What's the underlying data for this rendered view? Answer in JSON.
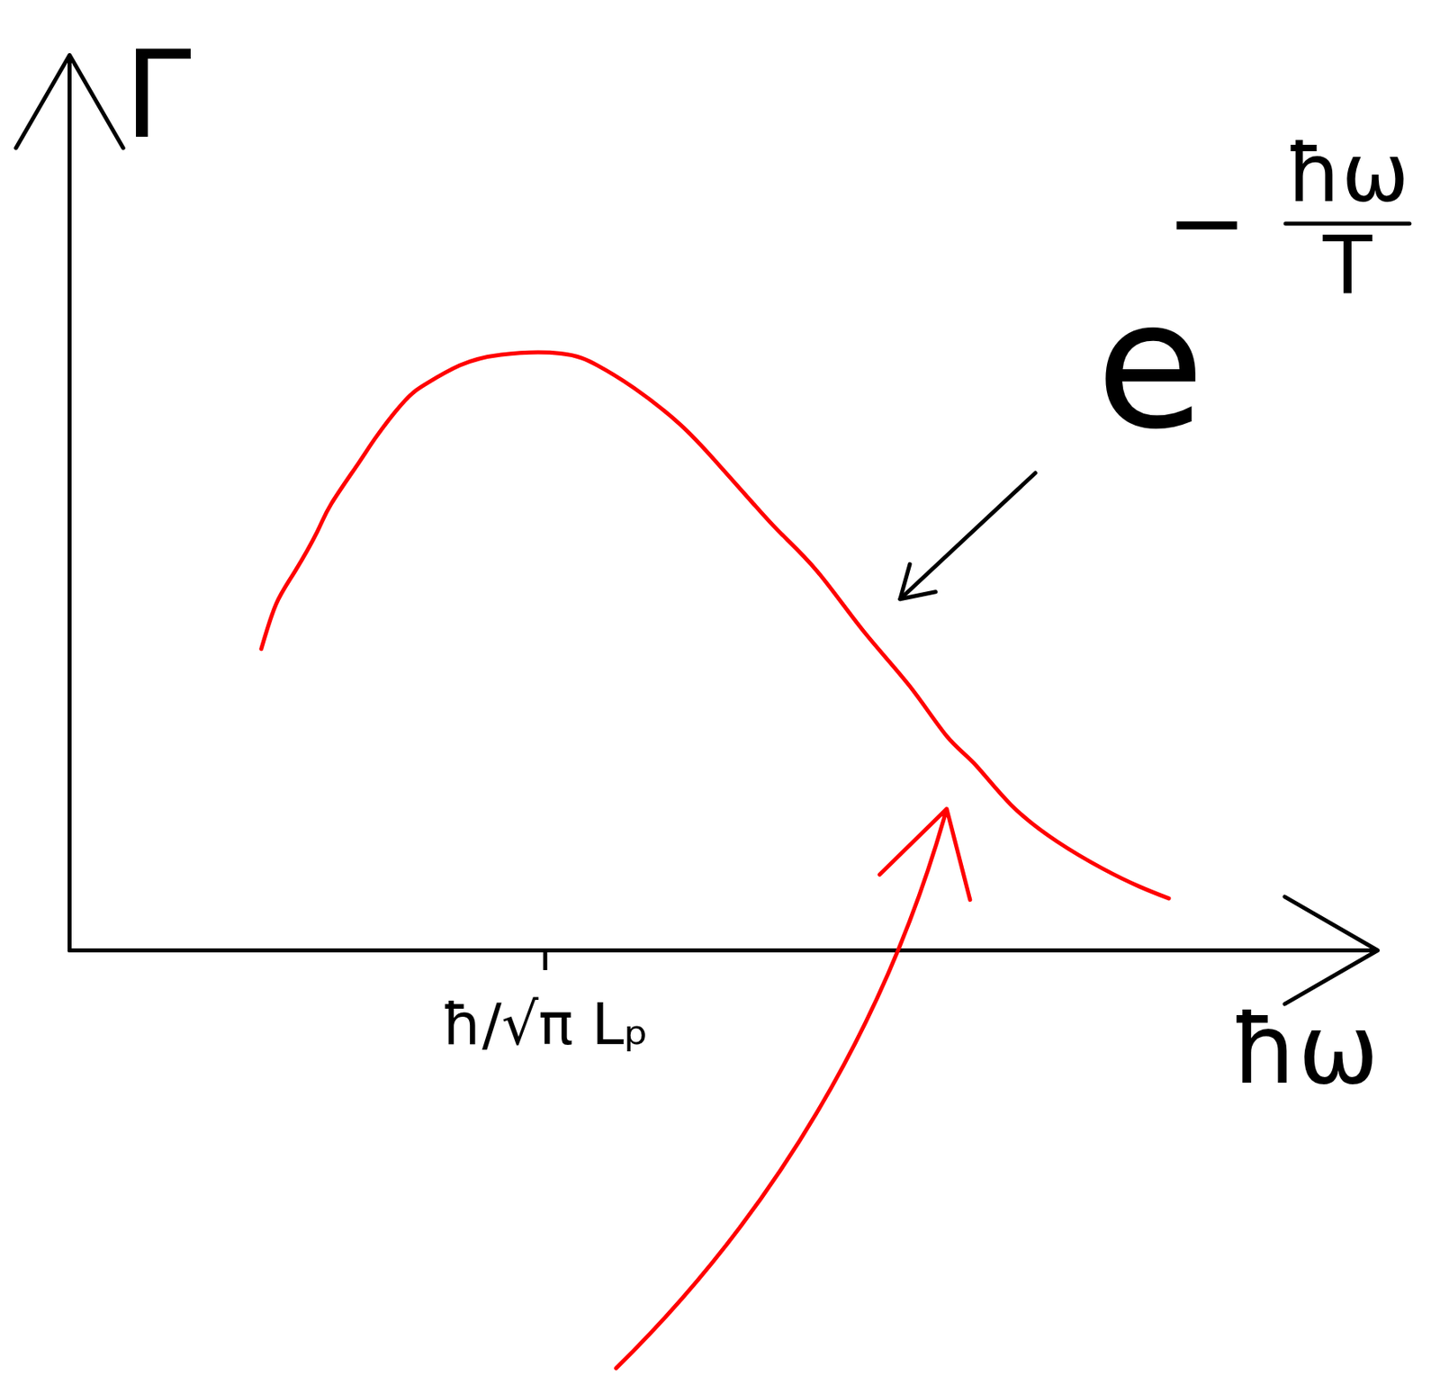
{
  "chart_data": {
    "type": "line",
    "x_label": "ħω",
    "y_label": "Γ",
    "xlim": [
      0,
      2.75
    ],
    "ylim": [
      0,
      1.5
    ],
    "xticks": [
      {
        "value": 1,
        "label": "ħ/√π Lₚ"
      }
    ],
    "yticks": [],
    "tick_labels": "x",
    "grid": false,
    "color": "red",
    "x": [
      0.403,
      0.434,
      0.473,
      0.521,
      0.55,
      0.608,
      0.647,
      0.705,
      0.753,
      0.82,
      0.907,
      1.033,
      1.11,
      1.187,
      1.284,
      1.361,
      1.438,
      1.496,
      1.573,
      1.67,
      1.766,
      1.844,
      1.902,
      1.979,
      2.075,
      2.172,
      2.249,
      2.311
    ],
    "values": [
      0.505,
      0.58,
      0.634,
      0.702,
      0.748,
      0.817,
      0.863,
      0.921,
      0.951,
      0.98,
      0.998,
      1.0,
      0.98,
      0.942,
      0.881,
      0.817,
      0.748,
      0.698,
      0.634,
      0.534,
      0.443,
      0.359,
      0.313,
      0.244,
      0.183,
      0.137,
      0.107,
      0.087
    ],
    "annotations": [
      {
        "text": "e",
        "exponent_sign": "−",
        "exponent_numerator": "ħω",
        "exponent_denominator": "T",
        "x": 1.747,
        "y": 0.588
      }
    ],
    "arrows": [
      {
        "x1": 1.149,
        "y1": -0.7,
        "x2": 1.844,
        "y2": 0.237,
        "color": "red"
      }
    ]
  }
}
